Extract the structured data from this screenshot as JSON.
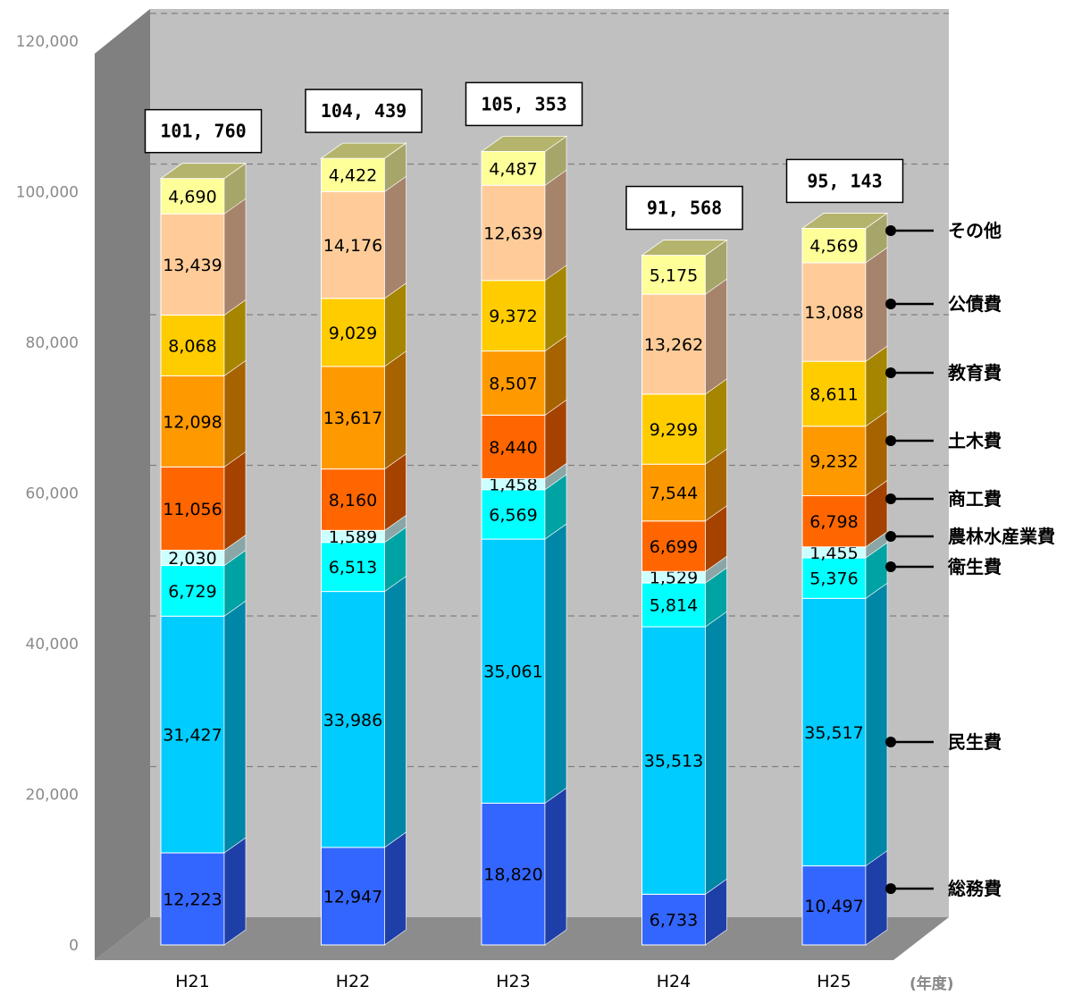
{
  "chart_data": {
    "type": "bar",
    "stacked": true,
    "categories": [
      "H21",
      "H22",
      "H23",
      "H24",
      "H25"
    ],
    "x_unit": "(年度)",
    "ylim": [
      0,
      120000
    ],
    "yticks": [
      "0",
      "20,000",
      "40,000",
      "60,000",
      "80,000",
      "100,000",
      "120,000"
    ],
    "ytick_values": [
      0,
      20000,
      40000,
      60000,
      80000,
      100000,
      120000
    ],
    "grid": true,
    "legend_position": "right",
    "totals": [
      101760,
      104439,
      105353,
      91568,
      95143
    ],
    "total_labels": [
      "101, 760",
      "104, 439",
      "105, 353",
      "91, 568",
      "95, 143"
    ],
    "series": [
      {
        "name": "総務費",
        "values": [
          12223,
          12947,
          18820,
          6733,
          10497
        ],
        "labels": [
          "12,223",
          "12,947",
          "18,820",
          "6,733",
          "10,497"
        ],
        "color": "#3366ff",
        "side": "#1f3fa8",
        "top": "#6f8fff"
      },
      {
        "name": "民生費",
        "values": [
          31427,
          33986,
          35061,
          35513,
          35517
        ],
        "labels": [
          "31,427",
          "33,986",
          "35,061",
          "35,513",
          "35,517"
        ],
        "color": "#00ccff",
        "side": "#0086a6",
        "top": "#66e0ff"
      },
      {
        "name": "衛生費",
        "values": [
          6729,
          6513,
          6569,
          5814,
          5376
        ],
        "labels": [
          "6,729",
          "6,513",
          "6,569",
          "5,814",
          "5,376"
        ],
        "color": "#00ffff",
        "side": "#00a3a3",
        "top": "#88ffff"
      },
      {
        "name": "農林水産業費",
        "values": [
          2030,
          1589,
          1458,
          1529,
          1455
        ],
        "labels": [
          "2,030",
          "1,589",
          "1,458",
          "1,529",
          "1,455"
        ],
        "color": "#ccffff",
        "side": "#8aa6a6",
        "top": "#e6ffff"
      },
      {
        "name": "商工費",
        "values": [
          11056,
          8160,
          8440,
          6699,
          6798
        ],
        "labels": [
          "11,056",
          "8,160",
          "8,440",
          "6,699",
          "6,798"
        ],
        "color": "#ff6600",
        "side": "#a64200",
        "top": "#ff9a55"
      },
      {
        "name": "土木費",
        "values": [
          12098,
          13617,
          8507,
          7544,
          9232
        ],
        "labels": [
          "12,098",
          "13,617",
          "8,507",
          "7,544",
          "9,232"
        ],
        "color": "#ff9900",
        "side": "#a66300",
        "top": "#ffbb55"
      },
      {
        "name": "教育費",
        "values": [
          8068,
          9029,
          9372,
          9299,
          8611
        ],
        "labels": [
          "8,068",
          "9,029",
          "9,372",
          "9,299",
          "8,611"
        ],
        "color": "#ffcc00",
        "side": "#a68500",
        "top": "#ffdd55"
      },
      {
        "name": "公債費",
        "values": [
          13439,
          14176,
          12639,
          13262,
          13088
        ],
        "labels": [
          "13,439",
          "14,176",
          "12,639",
          "13,262",
          "13,088"
        ],
        "color": "#ffcc99",
        "side": "#a6836b",
        "top": "#ffe0c2"
      },
      {
        "name": "その他",
        "values": [
          4690,
          4422,
          4487,
          5175,
          4569
        ],
        "labels": [
          "4,690",
          "4,422",
          "4,487",
          "5,175",
          "4,569"
        ],
        "color": "#ffff99",
        "side": "#a6a66a",
        "top": "#b4b46c"
      }
    ],
    "legend_order": [
      "その他",
      "公債費",
      "教育費",
      "土木費",
      "商工費",
      "農林水産業費",
      "衛生費",
      "民生費",
      "総務費"
    ]
  }
}
